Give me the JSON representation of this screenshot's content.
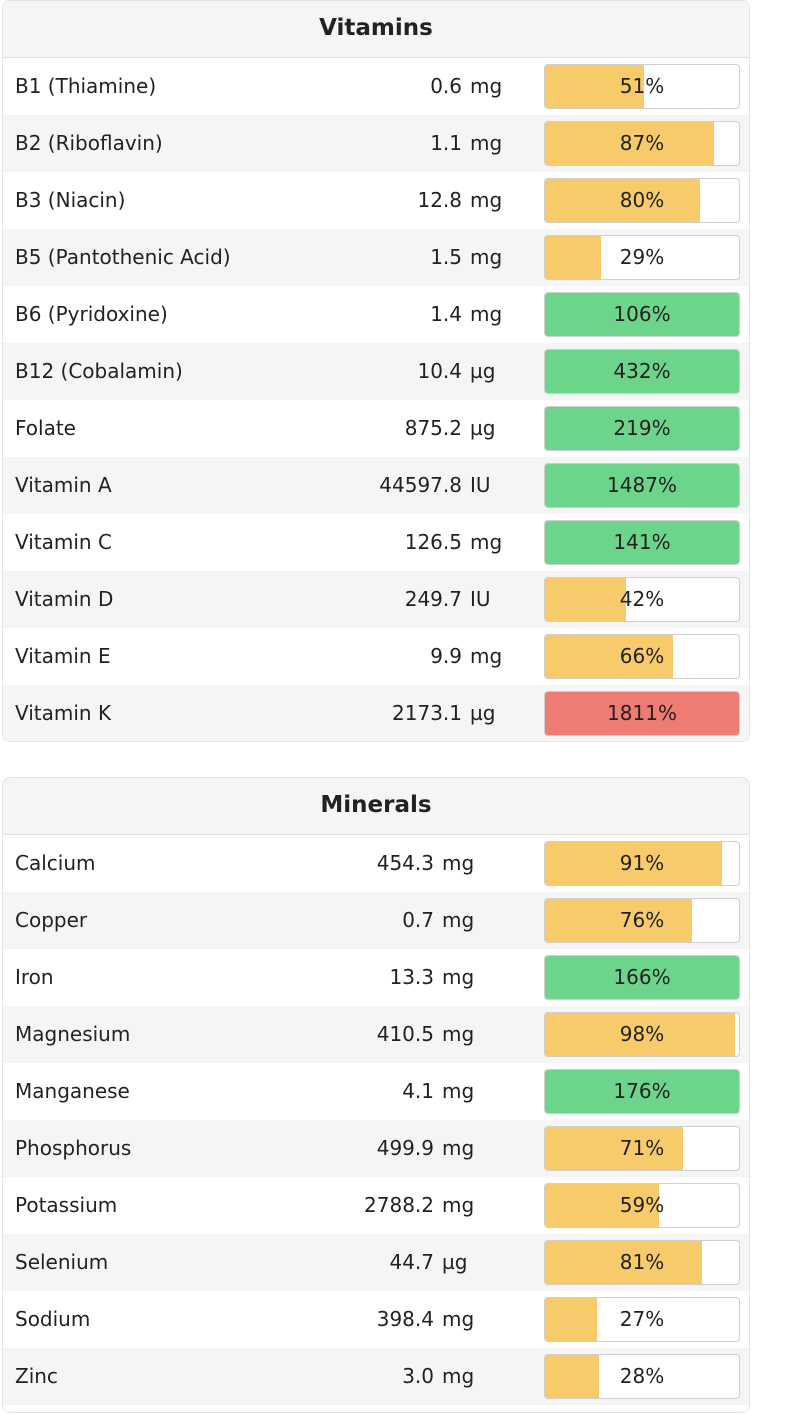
{
  "colors": {
    "low": "#f8cb6a",
    "good": "#6dd58b",
    "high": "#ee7c72"
  },
  "sections": [
    {
      "id": "vitamins",
      "title": "Vitamins",
      "rows": [
        {
          "name": "B1 (Thiamine)",
          "amount": "0.6",
          "unit": "mg",
          "percent_label": "51%",
          "fill_fraction": 0.51,
          "status": "low"
        },
        {
          "name": "B2 (Riboflavin)",
          "amount": "1.1",
          "unit": "mg",
          "percent_label": "87%",
          "fill_fraction": 0.87,
          "status": "low"
        },
        {
          "name": "B3 (Niacin)",
          "amount": "12.8",
          "unit": "mg",
          "percent_label": "80%",
          "fill_fraction": 0.8,
          "status": "low"
        },
        {
          "name": "B5 (Pantothenic Acid)",
          "amount": "1.5",
          "unit": "mg",
          "percent_label": "29%",
          "fill_fraction": 0.29,
          "status": "low"
        },
        {
          "name": "B6 (Pyridoxine)",
          "amount": "1.4",
          "unit": "mg",
          "percent_label": "106%",
          "fill_fraction": 1.0,
          "status": "good"
        },
        {
          "name": "B12 (Cobalamin)",
          "amount": "10.4",
          "unit": "µg",
          "percent_label": "432%",
          "fill_fraction": 1.0,
          "status": "good"
        },
        {
          "name": "Folate",
          "amount": "875.2",
          "unit": "µg",
          "percent_label": "219%",
          "fill_fraction": 1.0,
          "status": "good"
        },
        {
          "name": "Vitamin A",
          "amount": "44597.8",
          "unit": "IU",
          "percent_label": "1487%",
          "fill_fraction": 1.0,
          "status": "good"
        },
        {
          "name": "Vitamin C",
          "amount": "126.5",
          "unit": "mg",
          "percent_label": "141%",
          "fill_fraction": 1.0,
          "status": "good"
        },
        {
          "name": "Vitamin D",
          "amount": "249.7",
          "unit": "IU",
          "percent_label": "42%",
          "fill_fraction": 0.42,
          "status": "low"
        },
        {
          "name": "Vitamin E",
          "amount": "9.9",
          "unit": "mg",
          "percent_label": "66%",
          "fill_fraction": 0.66,
          "status": "low"
        },
        {
          "name": "Vitamin K",
          "amount": "2173.1",
          "unit": "µg",
          "percent_label": "1811%",
          "fill_fraction": 1.0,
          "status": "high"
        }
      ]
    },
    {
      "id": "minerals",
      "title": "Minerals",
      "rows": [
        {
          "name": "Calcium",
          "amount": "454.3",
          "unit": "mg",
          "percent_label": "91%",
          "fill_fraction": 0.91,
          "status": "low"
        },
        {
          "name": "Copper",
          "amount": "0.7",
          "unit": "mg",
          "percent_label": "76%",
          "fill_fraction": 0.76,
          "status": "low"
        },
        {
          "name": "Iron",
          "amount": "13.3",
          "unit": "mg",
          "percent_label": "166%",
          "fill_fraction": 1.0,
          "status": "good"
        },
        {
          "name": "Magnesium",
          "amount": "410.5",
          "unit": "mg",
          "percent_label": "98%",
          "fill_fraction": 0.98,
          "status": "low"
        },
        {
          "name": "Manganese",
          "amount": "4.1",
          "unit": "mg",
          "percent_label": "176%",
          "fill_fraction": 1.0,
          "status": "good"
        },
        {
          "name": "Phosphorus",
          "amount": "499.9",
          "unit": "mg",
          "percent_label": "71%",
          "fill_fraction": 0.71,
          "status": "low"
        },
        {
          "name": "Potassium",
          "amount": "2788.2",
          "unit": "mg",
          "percent_label": "59%",
          "fill_fraction": 0.59,
          "status": "low"
        },
        {
          "name": "Selenium",
          "amount": "44.7",
          "unit": "µg",
          "percent_label": "81%",
          "fill_fraction": 0.81,
          "status": "low"
        },
        {
          "name": "Sodium",
          "amount": "398.4",
          "unit": "mg",
          "percent_label": "27%",
          "fill_fraction": 0.27,
          "status": "low"
        },
        {
          "name": "Zinc",
          "amount": "3.0",
          "unit": "mg",
          "percent_label": "28%",
          "fill_fraction": 0.28,
          "status": "low"
        }
      ]
    }
  ]
}
